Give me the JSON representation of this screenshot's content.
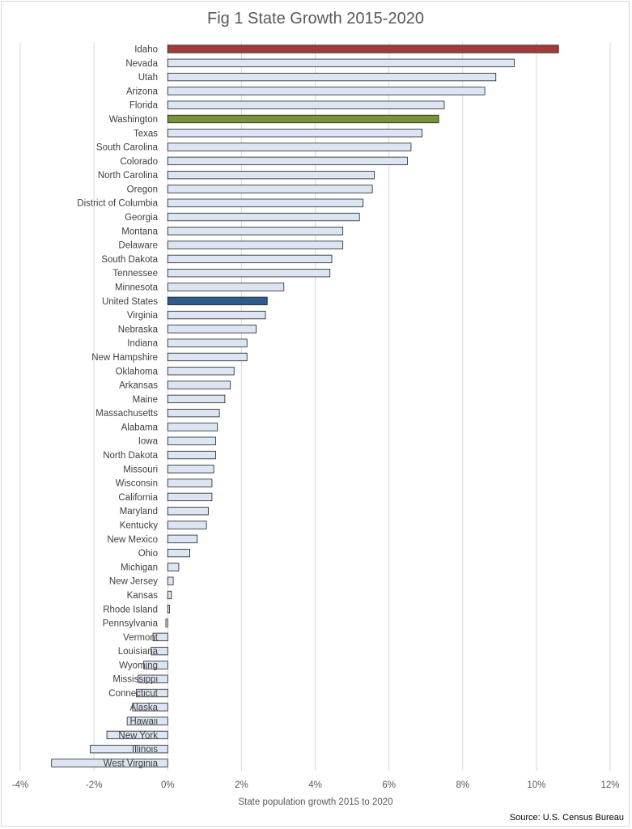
{
  "chart_data": {
    "type": "bar",
    "orientation": "horizontal",
    "title": "Fig 1 State Growth 2015-2020",
    "xlabel": "State population growth 2015 to 2020",
    "ylabel": "",
    "xlim": [
      -4,
      12
    ],
    "xticks": [
      -4,
      -2,
      0,
      2,
      4,
      6,
      8,
      10,
      12
    ],
    "tick_suffix": "%",
    "grid": true,
    "source": "Source: U.S. Census Bureau",
    "colors": {
      "default": "#dce6f2",
      "Idaho": "#a33a3a",
      "Washington": "#77933c",
      "United States": "#2f5a8c",
      "edge": "#1f1f1f",
      "grid": "#d9d9d9"
    },
    "categories": [
      "Idaho",
      "Nevada",
      "Utah",
      "Arizona",
      "Florida",
      "Washington",
      "Texas",
      "South Carolina",
      "Colorado",
      "North Carolina",
      "Oregon",
      "District of Columbia",
      "Georgia",
      "Montana",
      "Delaware",
      "South Dakota",
      "Tennessee",
      "Minnesota",
      "United States",
      "Virginia",
      "Nebraska",
      "Indiana",
      "New Hampshire",
      "Oklahoma",
      "Arkansas",
      "Maine",
      "Massachusetts",
      "Alabama",
      "Iowa",
      "North Dakota",
      "Missouri",
      "Wisconsin",
      "California",
      "Maryland",
      "Kentucky",
      "New Mexico",
      "Ohio",
      "Michigan",
      "New Jersey",
      "Kansas",
      "Rhode Island",
      "Pennsylvania",
      "Vermont",
      "Louisiana",
      "Wyoming",
      "Mississippi",
      "Connecticut",
      "Alaska",
      "Hawaii",
      "New York",
      "Illinois",
      "West Virginia"
    ],
    "values": [
      10.6,
      9.4,
      8.9,
      8.6,
      7.5,
      7.35,
      6.9,
      6.6,
      6.5,
      5.6,
      5.55,
      5.3,
      5.2,
      4.75,
      4.75,
      4.45,
      4.4,
      3.15,
      2.7,
      2.65,
      2.4,
      2.15,
      2.15,
      1.8,
      1.7,
      1.55,
      1.4,
      1.35,
      1.3,
      1.3,
      1.25,
      1.2,
      1.2,
      1.1,
      1.05,
      0.8,
      0.6,
      0.3,
      0.15,
      0.1,
      0.05,
      -0.05,
      -0.4,
      -0.45,
      -0.65,
      -0.8,
      -0.85,
      -0.95,
      -1.1,
      -1.65,
      -2.1,
      -3.15
    ]
  }
}
